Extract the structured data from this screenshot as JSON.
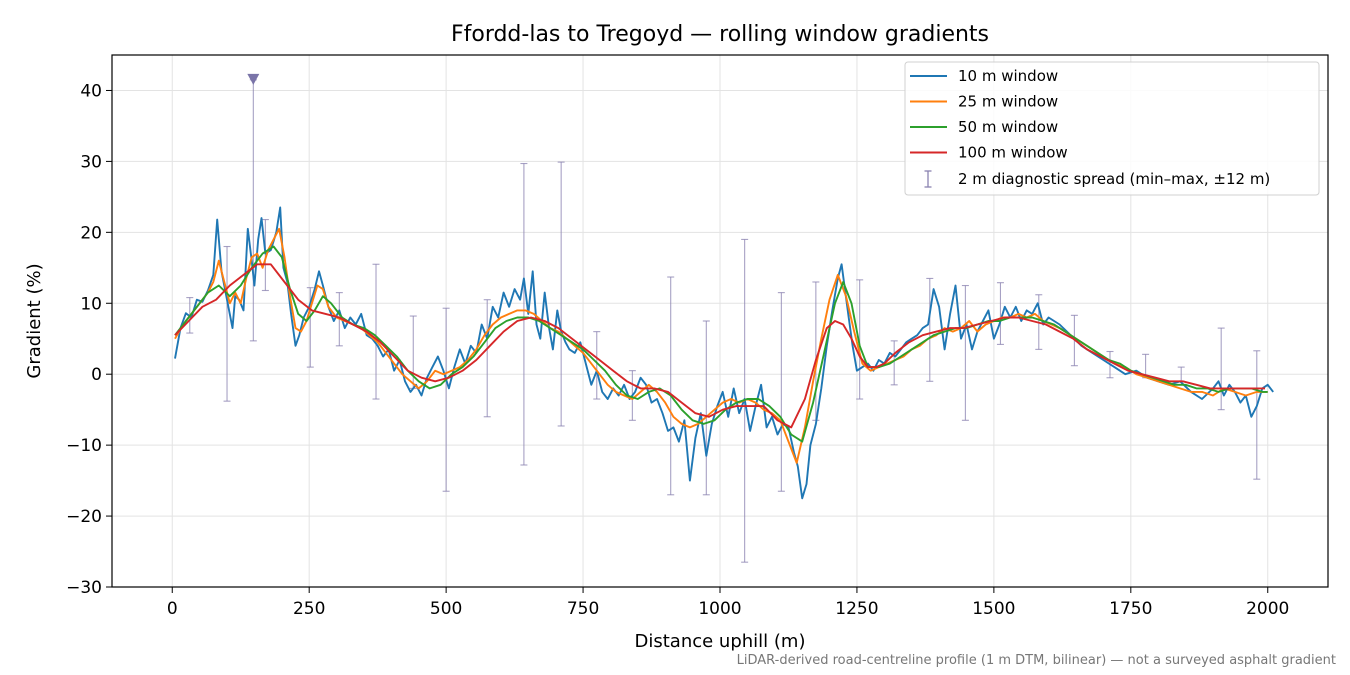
{
  "chart_data": {
    "type": "line",
    "title": "Ffordd-las to Tregoyd — rolling window gradients",
    "xlabel": "Distance uphill (m)",
    "ylabel": "Gradient (%)",
    "xlim": [
      -110,
      2110
    ],
    "ylim": [
      -30,
      45
    ],
    "xticks": [
      0,
      250,
      500,
      750,
      1000,
      1250,
      1500,
      1750,
      2000
    ],
    "yticks": [
      -30,
      -20,
      -10,
      0,
      10,
      20,
      30,
      40
    ],
    "grid": true,
    "legend_position": "top-right",
    "footnote": "LiDAR-derived road-centreline profile (1 m DTM, bilinear) — not a surveyed asphalt gradient",
    "series": [
      {
        "name": "10 m window",
        "color": "#1f77b4",
        "x": [
          5,
          15,
          25,
          35,
          45,
          55,
          65,
          75,
          82,
          90,
          100,
          110,
          115,
          122,
          130,
          138,
          145,
          150,
          157,
          163,
          170,
          180,
          190,
          197,
          203,
          210,
          217,
          225,
          232,
          240,
          250,
          260,
          268,
          275,
          285,
          295,
          305,
          315,
          325,
          335,
          345,
          355,
          365,
          375,
          385,
          395,
          405,
          415,
          425,
          435,
          445,
          455,
          465,
          475,
          485,
          495,
          505,
          515,
          525,
          535,
          545,
          555,
          565,
          575,
          585,
          595,
          605,
          615,
          625,
          635,
          642,
          650,
          658,
          665,
          672,
          680,
          688,
          695,
          703,
          710,
          718,
          725,
          735,
          745,
          755,
          765,
          775,
          785,
          795,
          805,
          815,
          825,
          835,
          845,
          855,
          865,
          875,
          885,
          895,
          905,
          915,
          925,
          935,
          945,
          955,
          965,
          975,
          985,
          995,
          1005,
          1015,
          1025,
          1035,
          1045,
          1055,
          1065,
          1075,
          1085,
          1095,
          1105,
          1115,
          1125,
          1135,
          1142,
          1150,
          1158,
          1165,
          1175,
          1185,
          1195,
          1205,
          1215,
          1222,
          1228,
          1235,
          1242,
          1250,
          1260,
          1270,
          1280,
          1290,
          1300,
          1310,
          1320,
          1330,
          1340,
          1350,
          1360,
          1370,
          1380,
          1390,
          1400,
          1410,
          1420,
          1430,
          1440,
          1450,
          1460,
          1470,
          1480,
          1490,
          1500,
          1510,
          1520,
          1530,
          1540,
          1550,
          1560,
          1570,
          1580,
          1590,
          1600,
          1620,
          1640,
          1660,
          1680,
          1700,
          1720,
          1740,
          1760,
          1780,
          1800,
          1820,
          1840,
          1860,
          1880,
          1900,
          1910,
          1920,
          1930,
          1940,
          1950,
          1960,
          1970,
          1980,
          1990,
          2000,
          2010
        ],
        "values": [
          2.2,
          6.5,
          8.6,
          8.0,
          10.5,
          10.2,
          11.8,
          14.0,
          21.8,
          14.5,
          10.5,
          6.5,
          11.0,
          10.5,
          9.0,
          20.5,
          16.0,
          12.5,
          19.0,
          22.0,
          17.0,
          17.5,
          20.0,
          23.5,
          15.0,
          13.0,
          8.5,
          4.0,
          5.5,
          8.0,
          9.5,
          12.0,
          14.5,
          12.5,
          9.5,
          7.5,
          9.0,
          6.5,
          8.0,
          7.0,
          8.5,
          5.5,
          5.0,
          4.0,
          2.5,
          3.5,
          0.5,
          2.0,
          -1.0,
          -2.5,
          -1.5,
          -3.0,
          -0.5,
          1.0,
          2.5,
          0.5,
          -2.0,
          1.0,
          3.5,
          1.5,
          4.0,
          3.0,
          7.0,
          5.0,
          9.5,
          8.0,
          11.5,
          9.5,
          12.0,
          10.5,
          13.5,
          8.5,
          14.5,
          7.0,
          5.0,
          11.5,
          6.5,
          3.5,
          9.0,
          6.0,
          4.5,
          3.5,
          3.0,
          4.5,
          1.5,
          -1.5,
          0.5,
          -2.5,
          -3.5,
          -2.0,
          -3.0,
          -1.5,
          -3.5,
          -2.5,
          -0.5,
          -1.5,
          -4.0,
          -3.5,
          -5.5,
          -8.0,
          -7.5,
          -9.5,
          -6.5,
          -15.0,
          -9.0,
          -5.5,
          -11.5,
          -7.0,
          -4.5,
          -2.5,
          -6.0,
          -2.0,
          -5.5,
          -3.5,
          -8.0,
          -4.5,
          -1.5,
          -7.5,
          -6.0,
          -8.5,
          -7.0,
          -7.5,
          -11.0,
          -13.0,
          -17.5,
          -15.5,
          -10.0,
          -7.0,
          -2.0,
          4.0,
          9.0,
          13.5,
          15.5,
          12.0,
          8.0,
          4.0,
          0.5,
          1.0,
          1.5,
          0.5,
          2.0,
          1.5,
          3.0,
          2.5,
          3.5,
          4.5,
          5.0,
          5.5,
          6.5,
          7.0,
          12.0,
          9.5,
          3.5,
          8.5,
          12.5,
          5.0,
          7.0,
          3.5,
          6.0,
          7.5,
          9.0,
          5.0,
          7.0,
          9.5,
          8.0,
          9.5,
          7.5,
          9.0,
          8.5,
          10.0,
          7.0,
          8.0,
          7.0,
          5.5,
          4.0,
          3.0,
          2.0,
          1.0,
          0.0,
          0.5,
          -0.5,
          -1.0,
          -1.5,
          -1.0,
          -2.5,
          -3.5,
          -2.0,
          -1.0,
          -3.0,
          -1.5,
          -2.5,
          -4.0,
          -3.0,
          -6.0,
          -4.5,
          -2.0,
          -1.5,
          -2.5
        ]
      },
      {
        "name": "25 m window",
        "color": "#ff7f0e",
        "x": [
          5,
          20,
          35,
          50,
          65,
          75,
          85,
          95,
          105,
          115,
          125,
          135,
          145,
          155,
          165,
          175,
          185,
          195,
          205,
          215,
          225,
          235,
          245,
          255,
          265,
          275,
          285,
          300,
          315,
          330,
          345,
          360,
          375,
          390,
          405,
          420,
          435,
          450,
          465,
          480,
          495,
          510,
          525,
          540,
          555,
          570,
          585,
          600,
          615,
          630,
          645,
          660,
          675,
          690,
          705,
          720,
          735,
          750,
          765,
          780,
          795,
          810,
          825,
          840,
          855,
          870,
          885,
          900,
          915,
          930,
          945,
          960,
          975,
          990,
          1005,
          1020,
          1035,
          1050,
          1065,
          1080,
          1095,
          1110,
          1125,
          1140,
          1155,
          1170,
          1185,
          1200,
          1215,
          1230,
          1245,
          1260,
          1275,
          1290,
          1305,
          1320,
          1335,
          1350,
          1365,
          1380,
          1395,
          1410,
          1425,
          1440,
          1455,
          1470,
          1485,
          1500,
          1515,
          1530,
          1545,
          1560,
          1575,
          1590,
          1605,
          1620,
          1640,
          1660,
          1680,
          1700,
          1720,
          1740,
          1760,
          1780,
          1800,
          1820,
          1840,
          1860,
          1880,
          1900,
          1920,
          1940,
          1960,
          1980,
          2000
        ],
        "values": [
          5.0,
          7.0,
          8.5,
          10.0,
          11.5,
          13.0,
          16.0,
          13.0,
          10.0,
          11.5,
          10.0,
          13.5,
          16.5,
          17.0,
          15.0,
          17.5,
          19.0,
          20.5,
          16.5,
          11.0,
          6.5,
          6.0,
          7.5,
          10.0,
          12.5,
          12.0,
          9.5,
          8.0,
          7.5,
          7.0,
          6.5,
          5.5,
          4.5,
          3.0,
          1.5,
          0.0,
          -1.0,
          -2.0,
          -1.0,
          0.5,
          0.0,
          0.5,
          1.0,
          2.0,
          3.5,
          5.5,
          7.0,
          8.0,
          8.5,
          9.0,
          9.0,
          8.5,
          7.5,
          6.5,
          6.0,
          5.0,
          4.0,
          3.0,
          1.5,
          0.0,
          -1.5,
          -2.5,
          -3.0,
          -3.5,
          -2.5,
          -1.5,
          -2.5,
          -4.0,
          -6.0,
          -7.0,
          -7.5,
          -7.0,
          -6.0,
          -5.0,
          -4.0,
          -3.5,
          -4.0,
          -3.5,
          -4.0,
          -5.0,
          -5.5,
          -6.5,
          -9.5,
          -12.5,
          -7.5,
          -1.0,
          5.0,
          10.5,
          14.0,
          11.0,
          6.0,
          1.5,
          0.5,
          1.0,
          1.5,
          2.0,
          2.5,
          3.5,
          4.0,
          5.0,
          5.5,
          6.5,
          6.0,
          6.5,
          7.5,
          6.0,
          7.0,
          7.5,
          8.0,
          8.0,
          8.5,
          8.0,
          8.5,
          7.5,
          7.0,
          6.5,
          5.5,
          4.5,
          3.5,
          2.5,
          1.5,
          1.0,
          0.0,
          -0.5,
          -1.0,
          -1.5,
          -2.0,
          -2.5,
          -2.5,
          -3.0,
          -2.0,
          -2.5,
          -3.0,
          -2.5,
          -2.5
        ]
      },
      {
        "name": "50 m window",
        "color": "#2ca02c",
        "x": [
          5,
          25,
          45,
          65,
          85,
          105,
          125,
          145,
          165,
          185,
          200,
          215,
          230,
          245,
          260,
          275,
          290,
          310,
          330,
          350,
          370,
          390,
          410,
          430,
          450,
          470,
          490,
          510,
          530,
          550,
          570,
          590,
          610,
          630,
          650,
          670,
          690,
          710,
          730,
          750,
          770,
          790,
          810,
          830,
          850,
          870,
          890,
          910,
          930,
          950,
          970,
          990,
          1010,
          1030,
          1050,
          1070,
          1090,
          1110,
          1130,
          1150,
          1170,
          1190,
          1210,
          1225,
          1240,
          1255,
          1270,
          1290,
          1310,
          1330,
          1350,
          1370,
          1390,
          1410,
          1430,
          1450,
          1470,
          1490,
          1510,
          1530,
          1550,
          1570,
          1590,
          1610,
          1630,
          1650,
          1670,
          1690,
          1710,
          1730,
          1750,
          1770,
          1790,
          1810,
          1830,
          1850,
          1870,
          1890,
          1910,
          1930,
          1950,
          1970,
          1990,
          2000
        ],
        "values": [
          5.5,
          7.5,
          9.5,
          11.5,
          12.5,
          11.0,
          12.5,
          15.0,
          17.0,
          18.0,
          16.5,
          12.0,
          8.5,
          7.5,
          9.0,
          11.0,
          10.0,
          8.0,
          7.0,
          6.5,
          5.5,
          4.0,
          2.5,
          0.5,
          -1.0,
          -2.0,
          -1.5,
          0.0,
          1.0,
          2.5,
          4.5,
          6.5,
          7.5,
          8.0,
          8.0,
          7.5,
          6.5,
          5.5,
          4.5,
          3.5,
          2.0,
          0.5,
          -1.5,
          -3.0,
          -3.5,
          -2.5,
          -2.0,
          -3.0,
          -5.0,
          -6.5,
          -7.0,
          -6.5,
          -5.0,
          -4.0,
          -3.5,
          -3.5,
          -4.5,
          -6.0,
          -8.5,
          -9.5,
          -4.0,
          3.0,
          10.0,
          13.0,
          10.0,
          4.0,
          1.0,
          1.0,
          1.5,
          2.5,
          3.5,
          4.5,
          5.5,
          6.0,
          6.5,
          6.5,
          7.0,
          7.5,
          7.5,
          8.0,
          8.0,
          8.0,
          7.5,
          7.0,
          6.0,
          5.0,
          4.0,
          3.0,
          2.0,
          1.5,
          0.5,
          0.0,
          -0.5,
          -1.0,
          -1.5,
          -1.5,
          -2.0,
          -2.0,
          -2.5,
          -2.0,
          -2.0,
          -2.0,
          -2.5,
          -2.5
        ]
      },
      {
        "name": "100 m window",
        "color": "#d62728",
        "x": [
          5,
          30,
          55,
          80,
          105,
          130,
          155,
          180,
          205,
          230,
          255,
          280,
          305,
          330,
          355,
          380,
          405,
          430,
          455,
          480,
          505,
          530,
          555,
          580,
          605,
          630,
          655,
          680,
          705,
          730,
          755,
          780,
          805,
          830,
          855,
          880,
          905,
          930,
          955,
          980,
          1005,
          1030,
          1055,
          1080,
          1105,
          1130,
          1155,
          1175,
          1195,
          1210,
          1225,
          1240,
          1255,
          1270,
          1285,
          1300,
          1320,
          1345,
          1370,
          1395,
          1420,
          1445,
          1470,
          1495,
          1520,
          1545,
          1570,
          1595,
          1620,
          1645,
          1670,
          1695,
          1720,
          1745,
          1770,
          1795,
          1820,
          1845,
          1870,
          1895,
          1920,
          1945,
          1970,
          1995
        ],
        "values": [
          5.5,
          7.5,
          9.5,
          10.5,
          12.5,
          14.0,
          15.5,
          15.5,
          13.0,
          10.5,
          9.0,
          8.5,
          8.0,
          7.0,
          6.0,
          4.5,
          2.5,
          0.5,
          -0.5,
          -1.0,
          -0.5,
          0.5,
          2.0,
          4.0,
          6.0,
          7.5,
          8.0,
          7.5,
          6.5,
          5.0,
          3.5,
          2.0,
          0.5,
          -1.0,
          -2.0,
          -2.0,
          -2.5,
          -4.0,
          -5.5,
          -6.0,
          -5.0,
          -4.5,
          -4.5,
          -4.5,
          -6.5,
          -7.5,
          -3.5,
          2.0,
          6.5,
          7.5,
          7.0,
          5.0,
          2.5,
          1.0,
          1.0,
          1.5,
          3.0,
          4.5,
          5.5,
          6.0,
          6.5,
          6.5,
          7.0,
          7.5,
          8.0,
          8.0,
          7.5,
          7.0,
          6.0,
          5.0,
          3.5,
          2.5,
          1.5,
          0.5,
          0.0,
          -0.5,
          -1.0,
          -1.0,
          -1.5,
          -2.0,
          -2.0,
          -2.0,
          -2.0,
          -2.0
        ]
      }
    ],
    "error_series": {
      "name": "2 m diagnostic spread (min–max, ±12 m)",
      "color": "#8a82b0",
      "x": [
        32,
        100,
        148,
        170,
        252,
        305,
        372,
        440,
        500,
        575,
        642,
        710,
        775,
        840,
        910,
        975,
        1045,
        1112,
        1175,
        1255,
        1318,
        1383,
        1448,
        1512,
        1582,
        1647,
        1712,
        1777,
        1842,
        1915,
        1980
      ],
      "low": [
        5.8,
        -3.8,
        4.7,
        11.8,
        1.0,
        4.0,
        -3.5,
        -2.0,
        -16.5,
        -6.0,
        -12.8,
        -7.3,
        -3.5,
        -6.5,
        -17.0,
        -17.0,
        -26.5,
        -16.5,
        -6.5,
        -3.5,
        -1.5,
        -1.0,
        -6.5,
        4.2,
        3.5,
        1.2,
        -0.5,
        -0.5,
        -1.0,
        -5.0,
        -14.8
      ],
      "high": [
        10.8,
        18.0,
        41.5,
        21.8,
        12.2,
        11.5,
        15.5,
        8.2,
        9.3,
        10.5,
        29.7,
        29.9,
        6.0,
        0.5,
        13.7,
        7.5,
        19.0,
        11.5,
        13.0,
        13.3,
        4.7,
        13.5,
        12.5,
        12.9,
        11.2,
        8.3,
        3.2,
        2.8,
        1.0,
        6.5,
        3.3
      ],
      "clipped_high_marker_x": 148
    }
  }
}
